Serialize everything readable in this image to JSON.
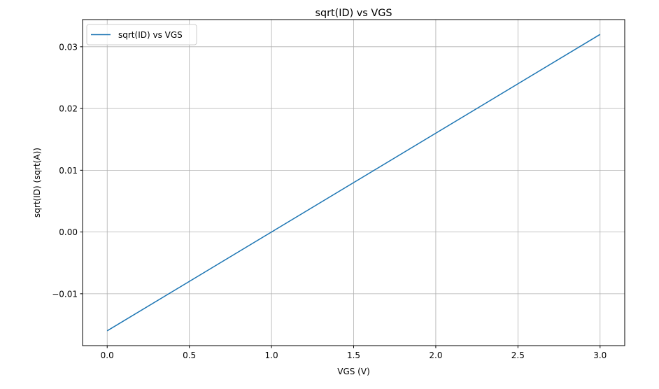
{
  "chart_data": {
    "type": "line",
    "title": "sqrt(ID) vs VGS",
    "xlabel": "VGS (V)",
    "ylabel": "sqrt(ID) (sqrt(A))",
    "xlim": [
      -0.15,
      3.15
    ],
    "ylim": [
      -0.0184,
      0.0344
    ],
    "grid": true,
    "legend_position": "top-left",
    "x_ticks": [
      0.0,
      0.5,
      1.0,
      1.5,
      2.0,
      2.5,
      3.0
    ],
    "x_tick_labels": [
      "0.0",
      "0.5",
      "1.0",
      "1.5",
      "2.0",
      "2.5",
      "3.0"
    ],
    "y_ticks": [
      -0.01,
      0.0,
      0.01,
      0.02,
      0.03
    ],
    "y_tick_labels": [
      "−0.01",
      "0.00",
      "0.01",
      "0.02",
      "0.03"
    ],
    "series": [
      {
        "name": "sqrt(ID) vs VGS",
        "color": "#1f77b4",
        "x": [
          0.0,
          3.0
        ],
        "y": [
          -0.016,
          0.032
        ]
      }
    ]
  }
}
